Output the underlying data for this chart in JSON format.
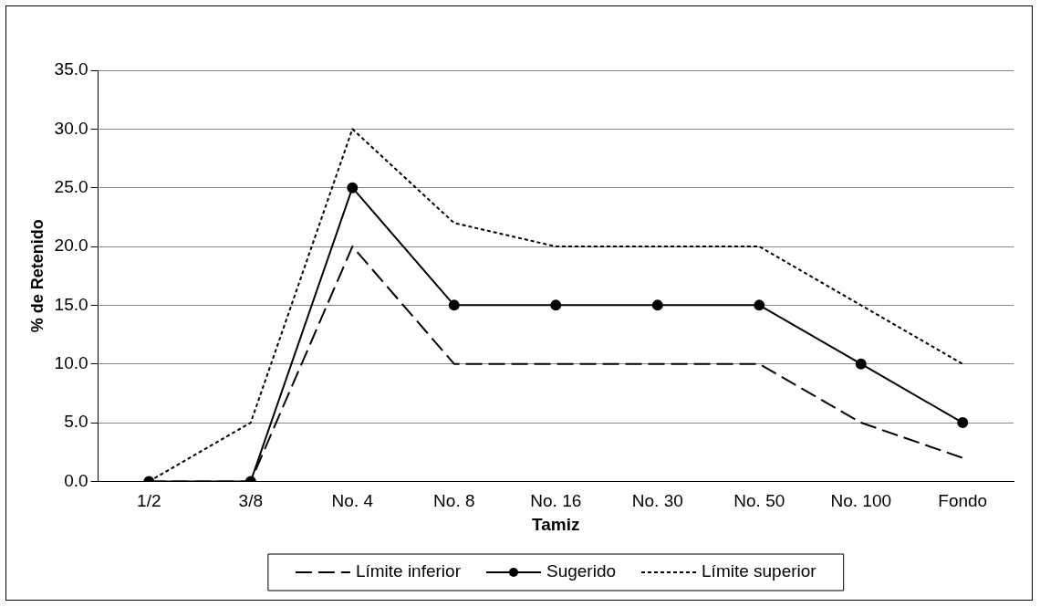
{
  "chart_data": {
    "type": "line",
    "xlabel": "Tamiz",
    "ylabel": "% de Retenido",
    "categories": [
      "1/2",
      "3/8",
      "No. 4",
      "No. 8",
      "No. 16",
      "No. 30",
      "No. 50",
      "No. 100",
      "Fondo"
    ],
    "series": [
      {
        "name": "Límite inferior",
        "color": "#000000",
        "line_style": "dashed",
        "marker": "none",
        "values": [
          0,
          0,
          20,
          10,
          10,
          10,
          10,
          5,
          2
        ]
      },
      {
        "name": "Sugerido",
        "color": "#000000",
        "line_style": "solid",
        "marker": "circle",
        "values": [
          0,
          0,
          25,
          15,
          15,
          15,
          15,
          10,
          5
        ]
      },
      {
        "name": "Límite superior",
        "color": "#000000",
        "line_style": "dotted",
        "marker": "none",
        "values": [
          0,
          5,
          30,
          22,
          20,
          20,
          20,
          15,
          10
        ]
      }
    ],
    "ylim": [
      0,
      35
    ],
    "yticks": [
      {
        "value": 0,
        "label": "0.0"
      },
      {
        "value": 5,
        "label": "5.0"
      },
      {
        "value": 10,
        "label": "10.0"
      },
      {
        "value": 15,
        "label": "15.0"
      },
      {
        "value": 20,
        "label": "20.0"
      },
      {
        "value": 25,
        "label": "25.0"
      },
      {
        "value": 30,
        "label": "30.0"
      },
      {
        "value": 35,
        "label": "35.0"
      }
    ],
    "grid": "y",
    "legend": "bottom"
  }
}
